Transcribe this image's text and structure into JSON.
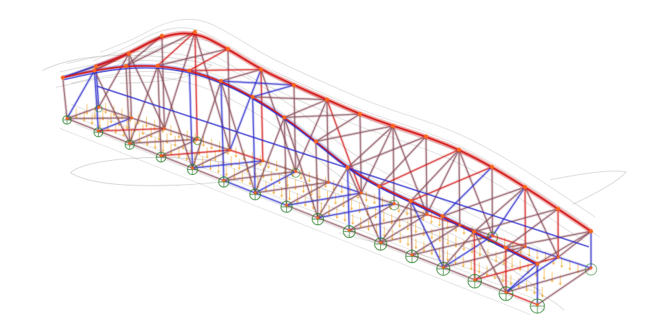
{
  "view": {
    "type": "structural-analysis-3d",
    "subject": "truss-bridge"
  },
  "structure": {
    "panels": 15,
    "visible_text": []
  },
  "legend": {
    "shown": false
  },
  "colors": {
    "background": "#ffffff",
    "tension_member": "#d41a1a",
    "compression_member": "#2b2bcc",
    "neutral_member": "#8a4f5a",
    "deformed_shape": "#9a9a9a",
    "load_arrow": "#f2a21a",
    "node": "#ff6a1a",
    "support": "#1f7a1f"
  },
  "icons": {
    "node": "node-dot-icon",
    "support": "pin-support-icon",
    "load": "load-arrow-icon"
  }
}
